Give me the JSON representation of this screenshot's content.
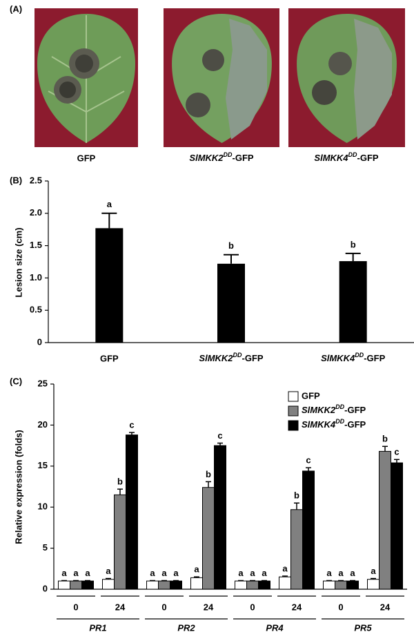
{
  "panel_labels": [
    "(A)",
    "(B)",
    "(C)"
  ],
  "photo_captions": [
    "GFP",
    {
      "italic": "SlMKK2",
      "sup": "DD",
      "plain": "-GFP"
    },
    {
      "italic": "SlMKK4",
      "sup": "DD",
      "plain": "-GFP"
    }
  ],
  "chart_data": [
    {
      "type": "bar",
      "y_label": "Lesion size (cm)",
      "categories": [
        "GFP",
        {
          "italic": "SlMKK2",
          "sup": "DD",
          "plain": "-GFP"
        },
        {
          "italic": "SlMKK4",
          "sup": "DD",
          "plain": "-GFP"
        }
      ],
      "values": [
        1.77,
        1.22,
        1.26
      ],
      "errors": [
        0.23,
        0.14,
        0.12
      ],
      "annotations": [
        "a",
        "b",
        "b"
      ],
      "color": "#000000",
      "ylim": [
        0,
        2.5
      ],
      "yticks": [
        0,
        0.5,
        {
          "value": 1,
          "label": "1.0"
        },
        1.5,
        {
          "value": 2,
          "label": "2.0"
        },
        2.5
      ]
    },
    {
      "type": "grouped_bar",
      "y_label": "Relative expression (folds)",
      "categories": [
        "0",
        "24",
        "0",
        "24",
        "0",
        "24",
        "0",
        "24"
      ],
      "groups": [
        "PR1",
        "PR2",
        "PR4",
        "PR5"
      ],
      "series": [
        {
          "name": "GFP",
          "color": "#ffffff",
          "values": [
            1,
            1.2,
            1,
            1.4,
            1,
            1.5,
            1,
            1.2
          ],
          "errors": [
            0.05,
            0.1,
            0.05,
            0.1,
            0.05,
            0.1,
            0.05,
            0.1
          ],
          "annotations": [
            "a",
            "a",
            "a",
            "a",
            "a",
            "a",
            "a",
            "a"
          ]
        },
        {
          "name": {
            "italic": "SlMKK2",
            "sup": "DD",
            "plain": "-GFP"
          },
          "color": "#808080",
          "values": [
            1,
            11.5,
            1,
            12.4,
            1,
            9.7,
            1,
            16.8
          ],
          "errors": [
            0.05,
            0.7,
            0.05,
            0.7,
            0.05,
            0.8,
            0.05,
            0.6
          ],
          "annotations": [
            "a",
            "b",
            "a",
            "b",
            "a",
            "b",
            "a",
            "b"
          ]
        },
        {
          "name": {
            "italic": "SlMKK4",
            "sup": "DD",
            "plain": "-GFP"
          },
          "color": "#000000",
          "values": [
            1,
            18.8,
            1,
            17.5,
            1,
            14.4,
            1,
            15.4
          ],
          "errors": [
            0.05,
            0.3,
            0.05,
            0.3,
            0.05,
            0.4,
            0.05,
            0.4
          ],
          "annotations": [
            "a",
            "c",
            "a",
            "c",
            "a",
            "c",
            "a",
            "c"
          ]
        }
      ],
      "ylim": [
        0,
        25
      ],
      "yticks": [
        0,
        5,
        10,
        15,
        20,
        25
      ]
    }
  ]
}
